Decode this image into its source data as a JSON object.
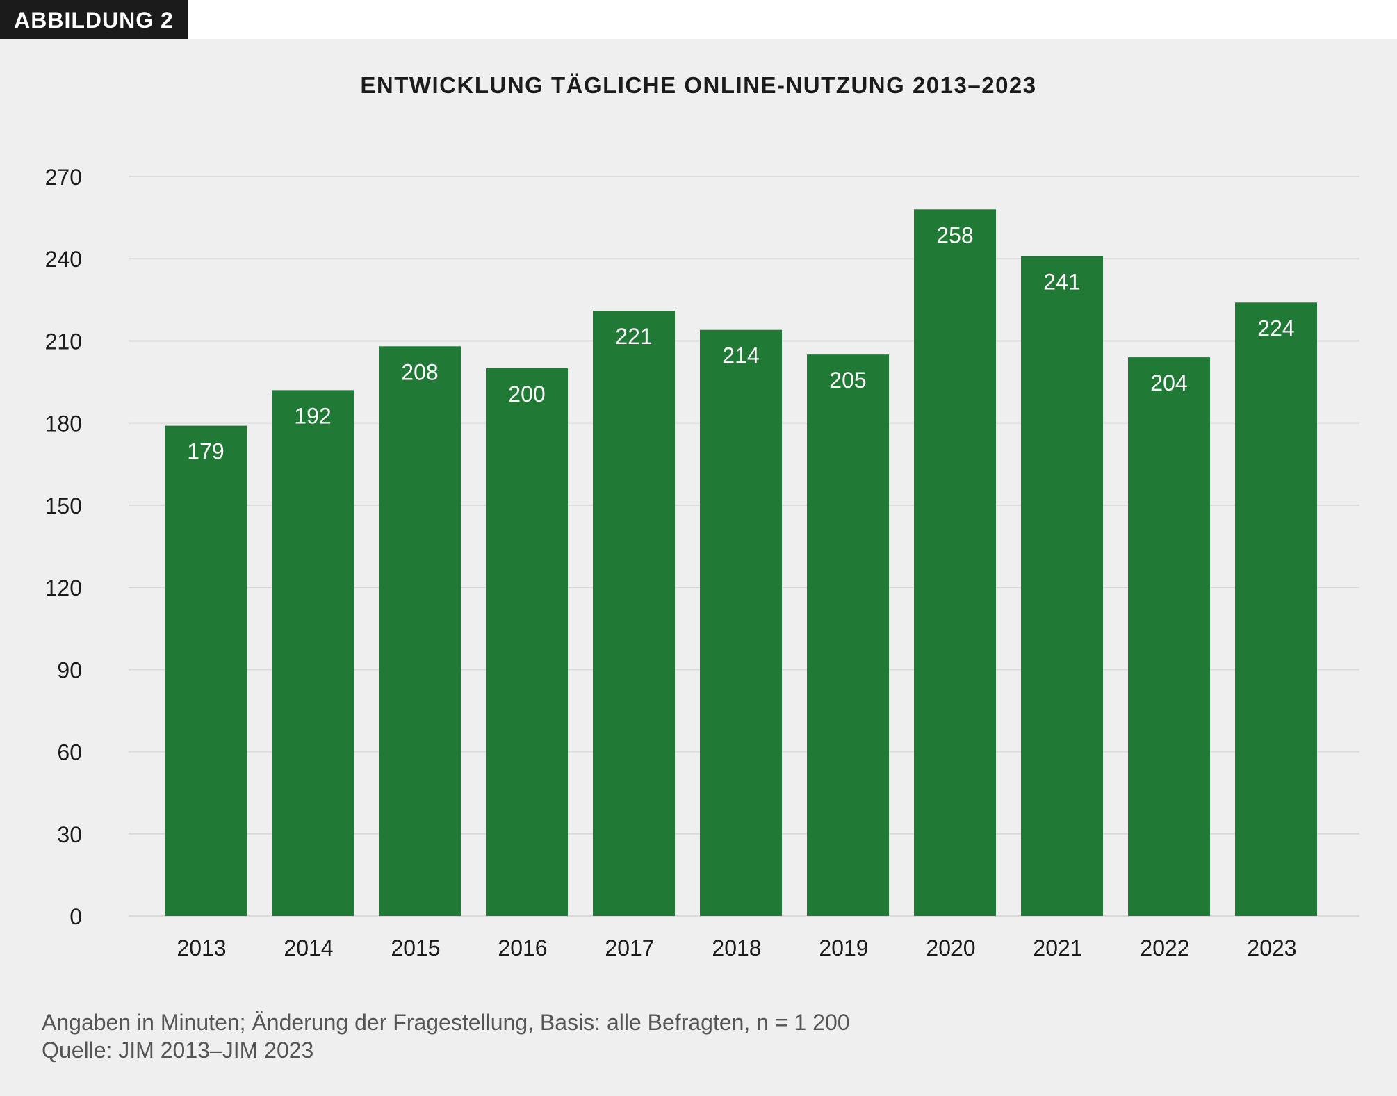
{
  "figure_label": "ABBILDUNG 2",
  "footnote": "Angaben in Minuten; Änderung der Fragestellung, Basis: alle Befragten, n = 1 200",
  "source": "Quelle: JIM 2013–JIM 2023",
  "colors": {
    "bar": "#207a35",
    "background": "#efefef",
    "grid": "#d9d9d9"
  },
  "chart_data": {
    "type": "bar",
    "title": "ENTWICKLUNG TÄGLICHE ONLINE-NUTZUNG 2013–2023",
    "xlabel": "",
    "ylabel": "",
    "categories": [
      "2013",
      "2014",
      "2015",
      "2016",
      "2017",
      "2018",
      "2019",
      "2020",
      "2021",
      "2022",
      "2023"
    ],
    "values": [
      179,
      192,
      208,
      200,
      221,
      214,
      205,
      258,
      241,
      204,
      224
    ],
    "ylim": [
      0,
      270
    ],
    "yticks": [
      0,
      30,
      60,
      90,
      120,
      150,
      180,
      210,
      240,
      270
    ],
    "grid": true,
    "data_labels": true,
    "legend": "none"
  }
}
